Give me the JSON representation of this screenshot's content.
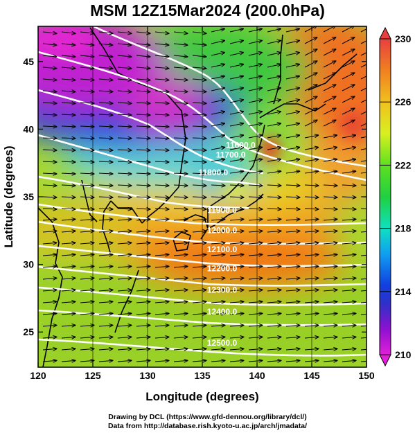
{
  "title": "MSM 12Z15Mar2024 (200.0hPa)",
  "xlabel": "Longitude (degrees)",
  "ylabel": "Latitude  (degrees)",
  "credits": [
    "Drawing by DCL (https://www.gfd-dennou.org/library/dcl/)",
    "Data from http://database.rish.kyoto-u.ac.jp/arch/jmadata/"
  ],
  "chart_data": {
    "type": "heatmap",
    "x_range": [
      120,
      150
    ],
    "y_range": [
      22.4,
      47.6
    ],
    "x_ticks": [
      120,
      125,
      130,
      135,
      140,
      145,
      150
    ],
    "y_ticks": [
      25,
      30,
      35,
      40,
      45
    ],
    "colorbar": {
      "min": 210,
      "max": 230,
      "ticks": [
        210,
        214,
        218,
        222,
        226,
        230
      ]
    },
    "contour_labels": [
      {
        "text": "11600.0",
        "lon": 138.5,
        "lat": 38.6
      },
      {
        "text": "11700.0",
        "lon": 137.6,
        "lat": 37.9
      },
      {
        "text": "11800.0",
        "lon": 136.0,
        "lat": 36.6
      },
      {
        "text": "11900.0",
        "lon": 136.8,
        "lat": 33.8
      },
      {
        "text": "12000.0",
        "lon": 136.8,
        "lat": 32.3
      },
      {
        "text": "12100.0",
        "lon": 136.8,
        "lat": 30.9
      },
      {
        "text": "12200.0",
        "lon": 136.8,
        "lat": 29.5
      },
      {
        "text": "12300.0",
        "lon": 136.8,
        "lat": 27.9
      },
      {
        "text": "12400.0",
        "lon": 136.8,
        "lat": 26.3
      },
      {
        "text": "12500.0",
        "lon": 136.8,
        "lat": 24.0
      }
    ]
  },
  "colors": {
    "wind_arrow": "#000000",
    "contour": "#ffffff"
  }
}
